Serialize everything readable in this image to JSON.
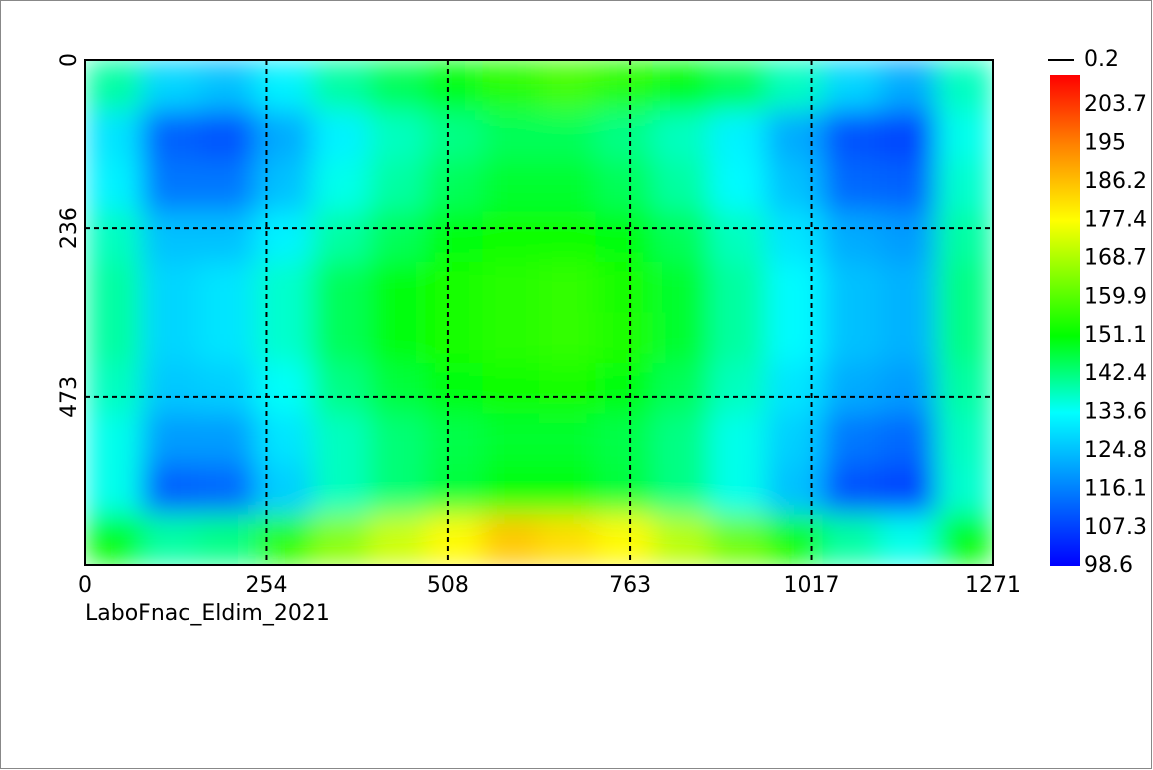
{
  "chart_data": {
    "type": "heatmap",
    "xlabel": "LaboFnac_Eldim_2021",
    "xlim": [
      0,
      1271
    ],
    "xticks": [
      0,
      254,
      508,
      763,
      1017,
      1271
    ],
    "ylim": [
      0,
      709
    ],
    "yticks": [
      0,
      236,
      473
    ],
    "grid": true,
    "values": [
      [
        140,
        128,
        125,
        132,
        140,
        145,
        150,
        155,
        158,
        155,
        150,
        145,
        138,
        128,
        122,
        138
      ],
      [
        130,
        112,
        110,
        122,
        132,
        138,
        142,
        145,
        145,
        142,
        138,
        132,
        122,
        110,
        108,
        135
      ],
      [
        132,
        115,
        115,
        125,
        135,
        140,
        145,
        148,
        148,
        145,
        140,
        133,
        125,
        113,
        112,
        137
      ],
      [
        138,
        125,
        125,
        132,
        140,
        145,
        150,
        152,
        152,
        150,
        145,
        138,
        130,
        122,
        120,
        140
      ],
      [
        140,
        128,
        130,
        137,
        145,
        150,
        153,
        155,
        156,
        153,
        148,
        140,
        133,
        125,
        123,
        142
      ],
      [
        140,
        128,
        130,
        137,
        145,
        150,
        153,
        155,
        156,
        154,
        148,
        140,
        133,
        125,
        123,
        142
      ],
      [
        138,
        126,
        127,
        134,
        142,
        147,
        150,
        152,
        153,
        150,
        145,
        138,
        130,
        122,
        120,
        140
      ],
      [
        135,
        120,
        120,
        130,
        138,
        143,
        146,
        148,
        148,
        146,
        142,
        135,
        127,
        115,
        113,
        138
      ],
      [
        135,
        112,
        113,
        127,
        138,
        143,
        147,
        150,
        150,
        147,
        142,
        135,
        125,
        110,
        108,
        137
      ],
      [
        150,
        140,
        142,
        155,
        165,
        172,
        178,
        185,
        182,
        178,
        170,
        162,
        152,
        140,
        135,
        150
      ]
    ],
    "clim": [
      98.6,
      210.6
    ],
    "colorscale": [
      [
        98.6,
        "#0000ff"
      ],
      [
        116.1,
        "#0080ff"
      ],
      [
        133.6,
        "#00ffff"
      ],
      [
        151.1,
        "#00ff00"
      ],
      [
        177.4,
        "#ffff00"
      ],
      [
        195.0,
        "#ff8000"
      ],
      [
        210.6,
        "#ff0000"
      ]
    ],
    "colorbar_ticks": [
      203.7,
      195.0,
      186.2,
      177.4,
      168.7,
      159.9,
      151.1,
      142.4,
      133.6,
      124.8,
      116.1,
      107.3,
      98.6
    ],
    "colorbar_marker": {
      "value": 0.2,
      "color": "#000000"
    }
  }
}
